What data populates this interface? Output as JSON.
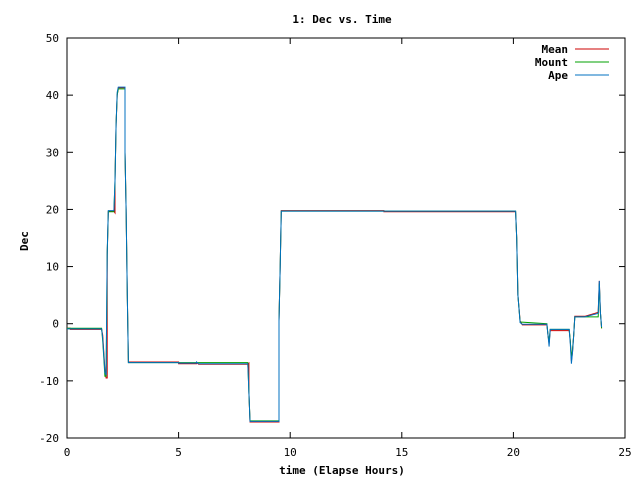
{
  "chart_data": {
    "type": "line",
    "title": "1: Dec vs. Time",
    "xlabel": "time (Elapse Hours)",
    "ylabel": "Dec",
    "xlim": [
      0,
      25
    ],
    "ylim": [
      -20,
      50
    ],
    "xticks": [
      0,
      5,
      10,
      15,
      20,
      25
    ],
    "yticks": [
      -20,
      -10,
      0,
      10,
      20,
      30,
      40,
      50
    ],
    "grid": false,
    "legend_position": "top-right",
    "series": [
      {
        "name": "Mean",
        "color": "#cc0000",
        "points": [
          [
            0,
            -0.8
          ],
          [
            0.15,
            -0.8
          ],
          [
            0.15,
            -1.0
          ],
          [
            1.55,
            -1.0
          ],
          [
            1.6,
            -2.0
          ],
          [
            1.65,
            -5.0
          ],
          [
            1.7,
            -8.0
          ],
          [
            1.75,
            -9.5
          ],
          [
            1.8,
            -9.5
          ],
          [
            1.8,
            12
          ],
          [
            1.85,
            19.7
          ],
          [
            2.1,
            19.7
          ],
          [
            2.15,
            19.4
          ],
          [
            2.15,
            25
          ],
          [
            2.2,
            35
          ],
          [
            2.25,
            40
          ],
          [
            2.3,
            41.3
          ],
          [
            2.6,
            41.3
          ],
          [
            2.6,
            30
          ],
          [
            2.65,
            20
          ],
          [
            2.7,
            5
          ],
          [
            2.75,
            -6.7
          ],
          [
            5.0,
            -6.7
          ],
          [
            5.0,
            -7.0
          ],
          [
            5.8,
            -7.0
          ],
          [
            5.8,
            -6.8
          ],
          [
            5.9,
            -7.1
          ],
          [
            8.1,
            -7.1
          ],
          [
            8.15,
            -6.9
          ],
          [
            8.15,
            -12
          ],
          [
            8.2,
            -17.2
          ],
          [
            9.5,
            -17.2
          ],
          [
            9.5,
            0.5
          ],
          [
            9.55,
            10
          ],
          [
            9.6,
            19.8
          ],
          [
            14.2,
            19.8
          ],
          [
            14.2,
            19.6
          ],
          [
            20.1,
            19.6
          ],
          [
            20.15,
            15
          ],
          [
            20.2,
            5
          ],
          [
            20.3,
            0.5
          ],
          [
            20.4,
            -0.2
          ],
          [
            21.5,
            -0.2
          ],
          [
            21.55,
            -2
          ],
          [
            21.6,
            -3.5
          ],
          [
            21.65,
            -1.2
          ],
          [
            22.5,
            -1.2
          ],
          [
            22.55,
            -3
          ],
          [
            22.6,
            -6.5
          ],
          [
            22.65,
            -5
          ],
          [
            22.7,
            -2
          ],
          [
            22.75,
            1.3
          ],
          [
            23.2,
            1.3
          ],
          [
            23.8,
            2.0
          ],
          [
            23.85,
            7.5
          ],
          [
            23.9,
            2
          ],
          [
            23.95,
            -0.8
          ]
        ]
      },
      {
        "name": "Mount",
        "color": "#00a000",
        "points": [
          [
            0,
            -0.8
          ],
          [
            1.55,
            -0.8
          ],
          [
            1.6,
            -3.0
          ],
          [
            1.65,
            -6.0
          ],
          [
            1.7,
            -9.2
          ],
          [
            1.75,
            -9.2
          ],
          [
            1.8,
            12
          ],
          [
            1.85,
            19.6
          ],
          [
            2.1,
            19.6
          ],
          [
            2.15,
            25
          ],
          [
            2.2,
            35
          ],
          [
            2.25,
            40
          ],
          [
            2.3,
            41.1
          ],
          [
            2.6,
            41.1
          ],
          [
            2.6,
            30
          ],
          [
            2.65,
            20
          ],
          [
            2.7,
            5
          ],
          [
            2.75,
            -6.8
          ],
          [
            5.9,
            -6.8
          ],
          [
            8.1,
            -6.8
          ],
          [
            8.15,
            -12
          ],
          [
            8.2,
            -17.0
          ],
          [
            9.5,
            -17.0
          ],
          [
            9.5,
            0.5
          ],
          [
            9.55,
            10
          ],
          [
            9.6,
            19.7
          ],
          [
            20.1,
            19.7
          ],
          [
            20.15,
            15
          ],
          [
            20.2,
            5
          ],
          [
            20.3,
            0.3
          ],
          [
            21.5,
            0.0
          ],
          [
            21.55,
            -2
          ],
          [
            21.6,
            -3.2
          ],
          [
            21.65,
            -1.0
          ],
          [
            22.5,
            -1.0
          ],
          [
            22.55,
            -3
          ],
          [
            22.6,
            -6.0
          ],
          [
            22.65,
            -4.5
          ],
          [
            22.7,
            -2
          ],
          [
            22.75,
            1.2
          ],
          [
            23.8,
            1.2
          ],
          [
            23.85,
            7.0
          ],
          [
            23.9,
            2
          ],
          [
            23.95,
            -0.8
          ]
        ]
      },
      {
        "name": "Ape",
        "color": "#0070c0",
        "points": [
          [
            0,
            -0.9
          ],
          [
            1.55,
            -0.9
          ],
          [
            1.6,
            -2.5
          ],
          [
            1.65,
            -5.5
          ],
          [
            1.7,
            -8.5
          ],
          [
            1.75,
            -9.0
          ],
          [
            1.8,
            12.5
          ],
          [
            1.85,
            19.8
          ],
          [
            2.1,
            19.8
          ],
          [
            2.15,
            25
          ],
          [
            2.2,
            35
          ],
          [
            2.25,
            40.5
          ],
          [
            2.3,
            41.4
          ],
          [
            2.6,
            41.4
          ],
          [
            2.6,
            30
          ],
          [
            2.65,
            20
          ],
          [
            2.7,
            5
          ],
          [
            2.75,
            -6.8
          ],
          [
            5.0,
            -6.8
          ],
          [
            5.0,
            -6.9
          ],
          [
            5.8,
            -6.9
          ],
          [
            5.8,
            -6.7
          ],
          [
            5.9,
            -7.0
          ],
          [
            8.1,
            -7.0
          ],
          [
            8.15,
            -12
          ],
          [
            8.2,
            -17.1
          ],
          [
            9.5,
            -17.1
          ],
          [
            9.5,
            0.5
          ],
          [
            9.55,
            10
          ],
          [
            9.6,
            19.7
          ],
          [
            20.1,
            19.7
          ],
          [
            20.15,
            15
          ],
          [
            20.2,
            5
          ],
          [
            20.3,
            0.2
          ],
          [
            20.4,
            -0.1
          ],
          [
            21.5,
            -0.1
          ],
          [
            21.55,
            -2
          ],
          [
            21.6,
            -4.0
          ],
          [
            21.65,
            -1.0
          ],
          [
            22.5,
            -1.0
          ],
          [
            22.55,
            -3.5
          ],
          [
            22.6,
            -7.0
          ],
          [
            22.65,
            -5
          ],
          [
            22.7,
            -2
          ],
          [
            22.75,
            1.2
          ],
          [
            23.2,
            1.2
          ],
          [
            23.8,
            1.8
          ],
          [
            23.85,
            7.5
          ],
          [
            23.9,
            2
          ],
          [
            23.95,
            -0.6
          ]
        ]
      }
    ]
  }
}
